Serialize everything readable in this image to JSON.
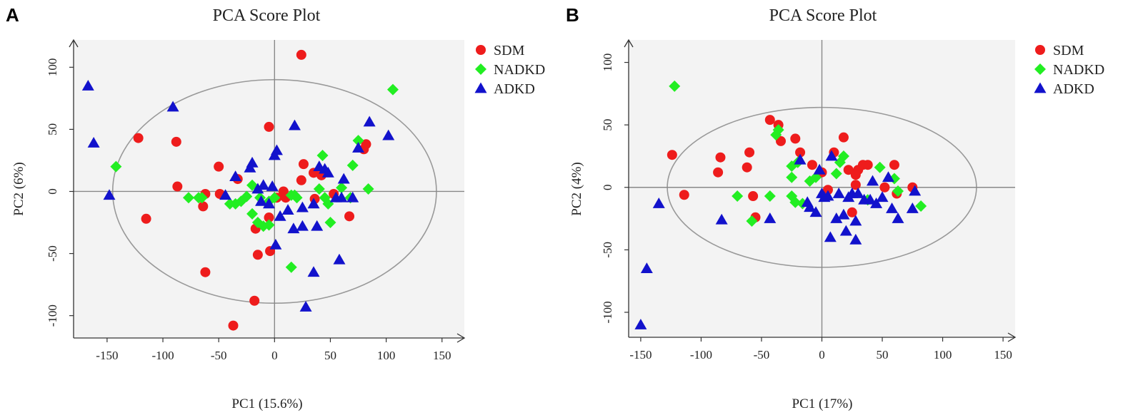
{
  "figure": {
    "panels": [
      "A",
      "B"
    ]
  },
  "colors": {
    "SDM": "#ee1c1c",
    "NADKD": "#22ee22",
    "ADKD": "#1212cc",
    "plot_bg": "#f3f3f3",
    "ellipse": "#999999",
    "axes": "#333333"
  },
  "chart_data": [
    {
      "panel": "A",
      "type": "scatter",
      "title": "PCA Score Plot",
      "xlabel": "PC1 (15.6%)",
      "ylabel": "PC2 (6%)",
      "xlim": [
        -180,
        170
      ],
      "ylim": [
        -118,
        122
      ],
      "xticks": [
        -150,
        -100,
        -50,
        0,
        50,
        100,
        150
      ],
      "yticks": [
        -100,
        -50,
        0,
        50,
        100
      ],
      "ellipse": {
        "center": [
          0,
          0
        ],
        "rx": 145,
        "ry": 90
      },
      "legend": [
        "SDM",
        "NADKD",
        "ADKD"
      ],
      "series": [
        {
          "name": "SDM",
          "marker": "circle",
          "points": [
            [
              24,
              110
            ],
            [
              -122,
              43
            ],
            [
              -88,
              40
            ],
            [
              -5,
              52
            ],
            [
              -50,
              20
            ],
            [
              26,
              22
            ],
            [
              -115,
              -22
            ],
            [
              -62,
              -65
            ],
            [
              -87,
              4
            ],
            [
              -62,
              -2
            ],
            [
              -49,
              -2
            ],
            [
              -64,
              -12
            ],
            [
              -33,
              10
            ],
            [
              -17,
              -30
            ],
            [
              -15,
              -51
            ],
            [
              -4,
              -48
            ],
            [
              -18,
              -88
            ],
            [
              -37,
              -108
            ],
            [
              -5,
              -21
            ],
            [
              2,
              -5
            ],
            [
              10,
              -5
            ],
            [
              24,
              9
            ],
            [
              35,
              15
            ],
            [
              42,
              13
            ],
            [
              36,
              -6
            ],
            [
              53,
              -2
            ],
            [
              80,
              34
            ],
            [
              82,
              38
            ],
            [
              67,
              -20
            ],
            [
              8,
              0
            ]
          ]
        },
        {
          "name": "NADKD",
          "marker": "diamond",
          "points": [
            [
              106,
              82
            ],
            [
              -142,
              20
            ],
            [
              -77,
              -5
            ],
            [
              -68,
              -5
            ],
            [
              -65,
              -5
            ],
            [
              -40,
              -10
            ],
            [
              -35,
              -10
            ],
            [
              -30,
              -8
            ],
            [
              -25,
              -4
            ],
            [
              -20,
              5
            ],
            [
              -20,
              -18
            ],
            [
              -15,
              -25
            ],
            [
              -10,
              -28
            ],
            [
              -5,
              -27
            ],
            [
              -5,
              -8
            ],
            [
              0,
              -5
            ],
            [
              15,
              -3
            ],
            [
              18,
              -3
            ],
            [
              20,
              -5
            ],
            [
              43,
              29
            ],
            [
              40,
              2
            ],
            [
              45,
              -5
            ],
            [
              48,
              -10
            ],
            [
              50,
              -25
            ],
            [
              60,
              3
            ],
            [
              68,
              -5
            ],
            [
              70,
              21
            ],
            [
              75,
              41
            ],
            [
              84,
              2
            ],
            [
              15,
              -61
            ],
            [
              -13,
              -5
            ]
          ]
        },
        {
          "name": "ADKD",
          "marker": "triangle",
          "points": [
            [
              -167,
              85
            ],
            [
              -162,
              39
            ],
            [
              -148,
              -3
            ],
            [
              -91,
              68
            ],
            [
              -44,
              -3
            ],
            [
              -35,
              12
            ],
            [
              -22,
              19
            ],
            [
              -20,
              23
            ],
            [
              -15,
              2
            ],
            [
              -10,
              5
            ],
            [
              -12,
              -8
            ],
            [
              -5,
              -10
            ],
            [
              -2,
              4
            ],
            [
              0,
              29
            ],
            [
              2,
              33
            ],
            [
              1,
              -43
            ],
            [
              18,
              53
            ],
            [
              5,
              -20
            ],
            [
              12,
              -15
            ],
            [
              17,
              -30
            ],
            [
              25,
              -13
            ],
            [
              25,
              -28
            ],
            [
              35,
              -10
            ],
            [
              35,
              -65
            ],
            [
              38,
              -28
            ],
            [
              40,
              20
            ],
            [
              45,
              18
            ],
            [
              48,
              15
            ],
            [
              55,
              -5
            ],
            [
              58,
              -55
            ],
            [
              62,
              10
            ],
            [
              70,
              -5
            ],
            [
              75,
              35
            ],
            [
              85,
              56
            ],
            [
              102,
              45
            ],
            [
              28,
              -93
            ],
            [
              60,
              -5
            ]
          ]
        }
      ]
    },
    {
      "panel": "B",
      "type": "scatter",
      "title": "PCA Score Plot",
      "xlabel": "PC1 (17%)",
      "ylabel": "PC2 (4%)",
      "xlim": [
        -160,
        160
      ],
      "ylim": [
        -120,
        118
      ],
      "xticks": [
        -150,
        -100,
        -50,
        0,
        50,
        100,
        150
      ],
      "yticks": [
        -100,
        -50,
        0,
        50,
        100
      ],
      "ellipse": {
        "center": [
          0,
          0
        ],
        "rx": 128,
        "ry": 64
      },
      "legend": [
        "SDM",
        "NADKD",
        "ADKD"
      ],
      "series": [
        {
          "name": "SDM",
          "marker": "circle",
          "points": [
            [
              -124,
              26
            ],
            [
              -114,
              -6
            ],
            [
              -84,
              24
            ],
            [
              -86,
              12
            ],
            [
              -60,
              28
            ],
            [
              -62,
              16
            ],
            [
              -57,
              -7
            ],
            [
              -55,
              -24
            ],
            [
              -43,
              54
            ],
            [
              -36,
              50
            ],
            [
              -34,
              37
            ],
            [
              -22,
              39
            ],
            [
              -18,
              28
            ],
            [
              -8,
              18
            ],
            [
              0,
              12
            ],
            [
              5,
              -2
            ],
            [
              10,
              28
            ],
            [
              18,
              40
            ],
            [
              22,
              14
            ],
            [
              25,
              -20
            ],
            [
              28,
              10
            ],
            [
              30,
              14
            ],
            [
              34,
              18
            ],
            [
              38,
              18
            ],
            [
              28,
              2
            ],
            [
              52,
              0
            ],
            [
              60,
              18
            ],
            [
              62,
              -5
            ],
            [
              75,
              0
            ]
          ]
        },
        {
          "name": "NADKD",
          "marker": "diamond",
          "points": [
            [
              -122,
              81
            ],
            [
              -70,
              -7
            ],
            [
              -58,
              -27
            ],
            [
              -43,
              -7
            ],
            [
              -38,
              42
            ],
            [
              -36,
              46
            ],
            [
              -25,
              17
            ],
            [
              -25,
              8
            ],
            [
              -20,
              20
            ],
            [
              -25,
              -7
            ],
            [
              -22,
              -12
            ],
            [
              -16,
              -13
            ],
            [
              -10,
              5
            ],
            [
              -5,
              8
            ],
            [
              12,
              11
            ],
            [
              15,
              20
            ],
            [
              18,
              25
            ],
            [
              38,
              -10
            ],
            [
              48,
              16
            ],
            [
              60,
              7
            ],
            [
              63,
              -3
            ],
            [
              82,
              -15
            ]
          ]
        },
        {
          "name": "ADKD",
          "marker": "triangle",
          "points": [
            [
              -150,
              -110
            ],
            [
              -145,
              -65
            ],
            [
              -135,
              -13
            ],
            [
              -83,
              -26
            ],
            [
              -43,
              -25
            ],
            [
              -18,
              22
            ],
            [
              -12,
              -12
            ],
            [
              -10,
              -16
            ],
            [
              -5,
              -20
            ],
            [
              -2,
              14
            ],
            [
              0,
              -5
            ],
            [
              2,
              -8
            ],
            [
              5,
              -7
            ],
            [
              7,
              -40
            ],
            [
              8,
              25
            ],
            [
              12,
              -25
            ],
            [
              14,
              -5
            ],
            [
              18,
              -22
            ],
            [
              20,
              -35
            ],
            [
              22,
              -8
            ],
            [
              25,
              -5
            ],
            [
              28,
              -42
            ],
            [
              30,
              -5
            ],
            [
              35,
              -10
            ],
            [
              40,
              -10
            ],
            [
              42,
              5
            ],
            [
              45,
              -13
            ],
            [
              50,
              -8
            ],
            [
              55,
              8
            ],
            [
              58,
              -17
            ],
            [
              63,
              -25
            ],
            [
              75,
              -17
            ],
            [
              77,
              -3
            ],
            [
              28,
              -27
            ]
          ]
        }
      ]
    }
  ]
}
